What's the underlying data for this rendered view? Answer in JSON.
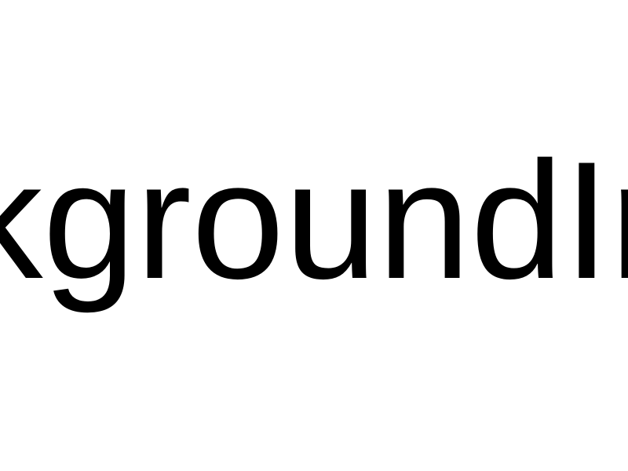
{
  "text": {
    "content": "kgroundIm",
    "color": "#000000"
  },
  "background": {
    "color": "#ffffff"
  }
}
